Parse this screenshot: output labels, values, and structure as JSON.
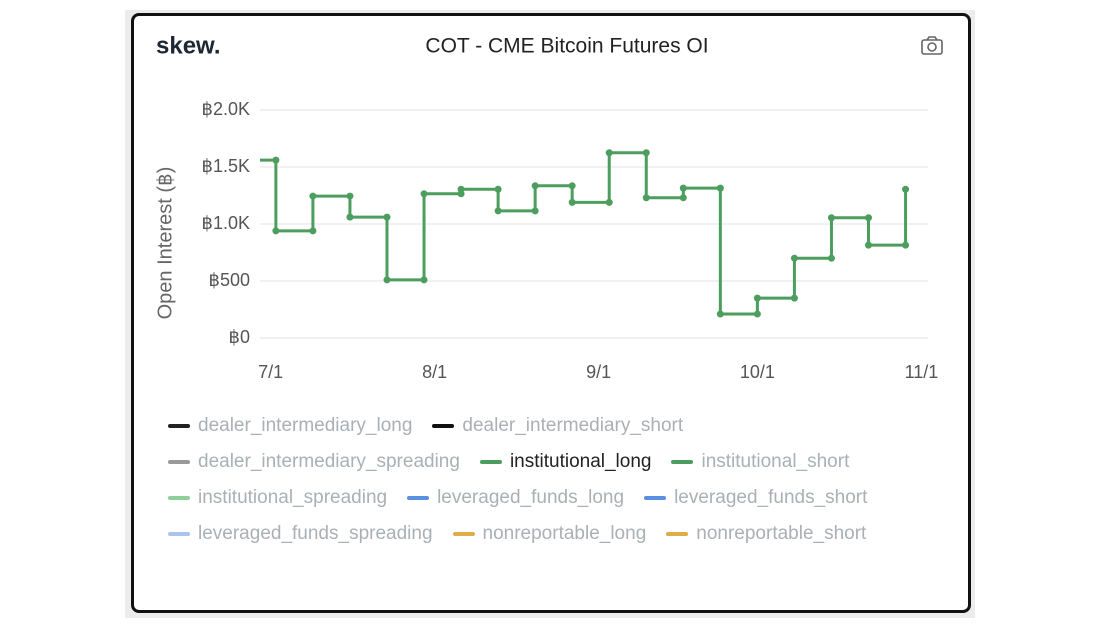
{
  "brand": "skew.",
  "chart_data": {
    "type": "step",
    "title": "COT - CME Bitcoin Futures OI",
    "y_label": "Open Interest (฿)",
    "x": [
      "6/25",
      "7/2",
      "7/9",
      "7/16",
      "7/23",
      "7/30",
      "8/6",
      "8/13",
      "8/20",
      "8/27",
      "9/3",
      "9/10",
      "9/17",
      "9/24",
      "10/1",
      "10/8",
      "10/15",
      "10/22",
      "10/29"
    ],
    "series": [
      {
        "name": "institutional_long",
        "color": "#4d9e5e",
        "values": [
          1560,
          940,
          1245,
          1060,
          510,
          1265,
          1305,
          1115,
          1335,
          1190,
          1625,
          1230,
          1315,
          210,
          350,
          700,
          1055,
          815,
          1305
        ]
      }
    ],
    "xlim": [
      "6/29",
      "11/3"
    ],
    "xticks": [
      "7/1",
      "8/1",
      "9/1",
      "10/1",
      "11/1"
    ],
    "ylim": [
      0,
      2000
    ],
    "yticks": [
      {
        "value": 0,
        "label": "฿0"
      },
      {
        "value": 500,
        "label": "฿500"
      },
      {
        "value": 1000,
        "label": "฿1.0K"
      },
      {
        "value": 1500,
        "label": "฿1.5K"
      },
      {
        "value": 2000,
        "label": "฿2.0K"
      }
    ],
    "grid": true,
    "legend": [
      {
        "name": "dealer_intermediary_long",
        "color": "#222222",
        "hidden": true
      },
      {
        "name": "dealer_intermediary_short",
        "color": "#111111",
        "hidden": true
      },
      {
        "name": "dealer_intermediary_spreading",
        "color": "#9a9a9a",
        "hidden": true
      },
      {
        "name": "institutional_long",
        "color": "#4d9e5e",
        "hidden": false
      },
      {
        "name": "institutional_short",
        "color": "#4d9e5e",
        "hidden": true
      },
      {
        "name": "institutional_spreading",
        "color": "#8fcf9c",
        "hidden": true
      },
      {
        "name": "leveraged_funds_long",
        "color": "#5b8fe0",
        "hidden": true
      },
      {
        "name": "leveraged_funds_short",
        "color": "#5b8fe0",
        "hidden": true
      },
      {
        "name": "leveraged_funds_spreading",
        "color": "#a9c4f0",
        "hidden": true
      },
      {
        "name": "nonreportable_long",
        "color": "#e0ac45",
        "hidden": true
      },
      {
        "name": "nonreportable_short",
        "color": "#e0ac45",
        "hidden": true
      }
    ]
  }
}
